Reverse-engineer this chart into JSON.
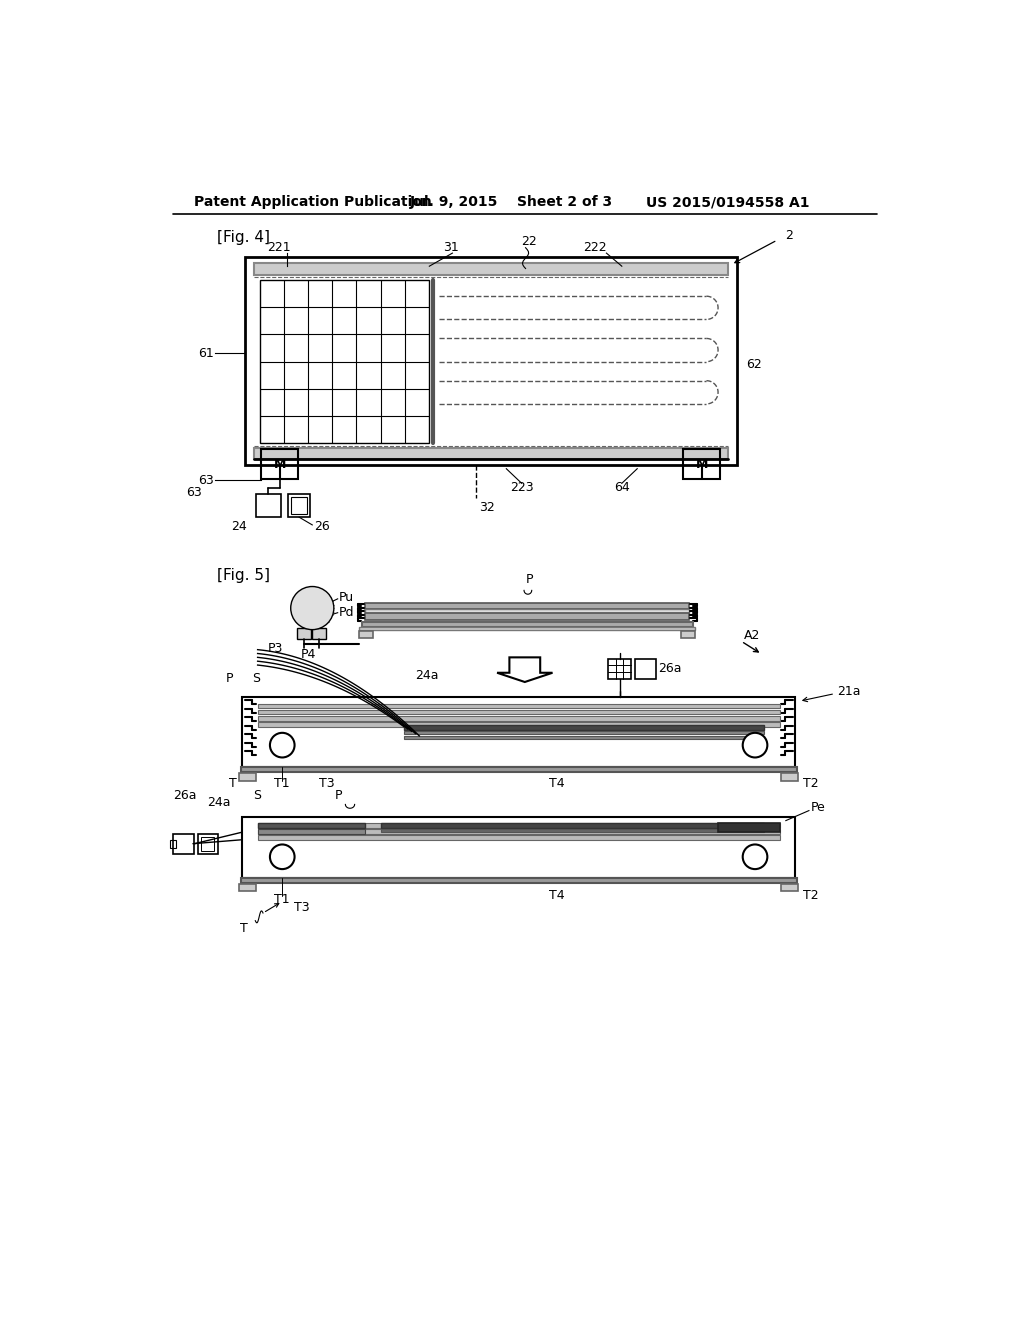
{
  "bg_color": "#ffffff",
  "header_text": "Patent Application Publication",
  "header_date": "Jul. 9, 2015",
  "header_sheet": "Sheet 2 of 3",
  "header_patent": "US 2015/0194558 A1",
  "fig4_label": "[Fig. 4]",
  "fig5_label": "[Fig. 5]"
}
